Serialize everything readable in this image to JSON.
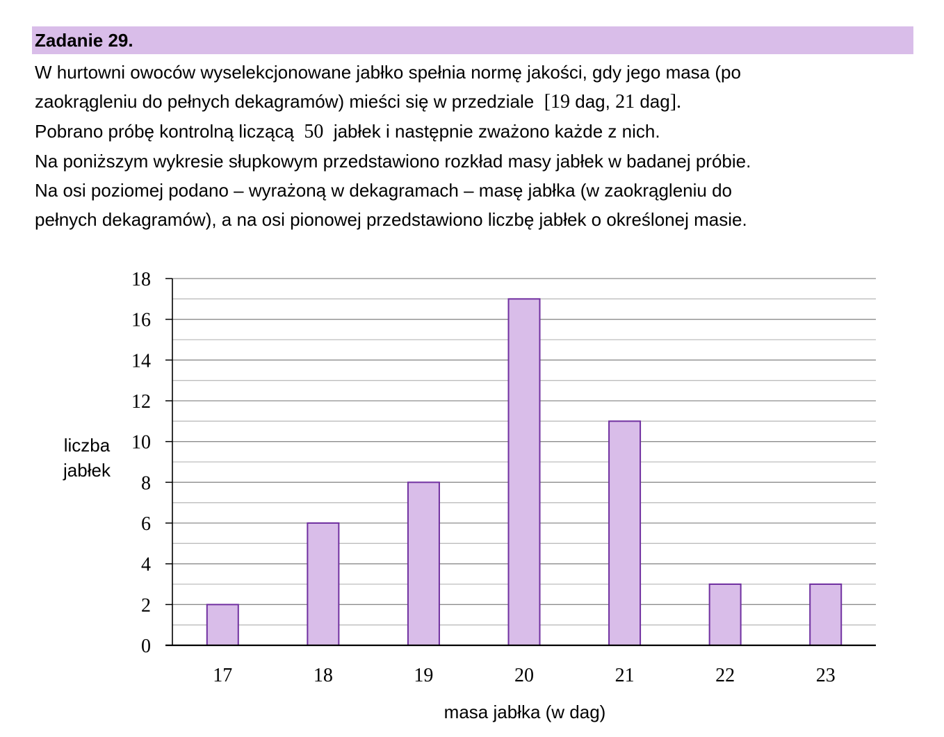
{
  "header": {
    "title": "Zadanie 29."
  },
  "problem": {
    "line1": "W hurtowni owoców wyselekcjonowane jabłko spełnia normę jakości, gdy jego masa (po",
    "line2_prefix": "zaokrągleniu do pełnych dekagramów) mieści się w przedziale",
    "line2_interval_open": "[19",
    "line2_unit_a": "dag,",
    "line2_interval_num": "21",
    "line2_unit_b": "dag",
    "line2_interval_close": "].",
    "line3_prefix": "Pobrano próbę kontrolną liczącą",
    "line3_number": "50",
    "line3_suffix": "jabłek i następnie zważono każde z nich.",
    "line4": "Na poniższym wykresie słupkowym przedstawiono rozkład masy jabłek w badanej próbie.",
    "line5": "Na osi poziomej podano – wyrażoną w dekagramach – masę jabłka (w zaokrągleniu do",
    "line6": "pełnych dekagramów), a na osi pionowej przedstawiono liczbę jabłek o określonej masie."
  },
  "chart_data": {
    "type": "bar",
    "categories": [
      "17",
      "18",
      "19",
      "20",
      "21",
      "22",
      "23"
    ],
    "values": [
      2,
      6,
      8,
      17,
      11,
      3,
      3
    ],
    "xlabel": "masa jabłka (w dag)",
    "ylabel_line1": "liczba",
    "ylabel_line2": "jabłek",
    "ylim": [
      0,
      18
    ],
    "yticks": [
      "0",
      "2",
      "4",
      "6",
      "8",
      "10",
      "12",
      "14",
      "16",
      "18"
    ],
    "grid": true,
    "bar_fill": "#d9bde9",
    "bar_stroke": "#7030a0"
  }
}
